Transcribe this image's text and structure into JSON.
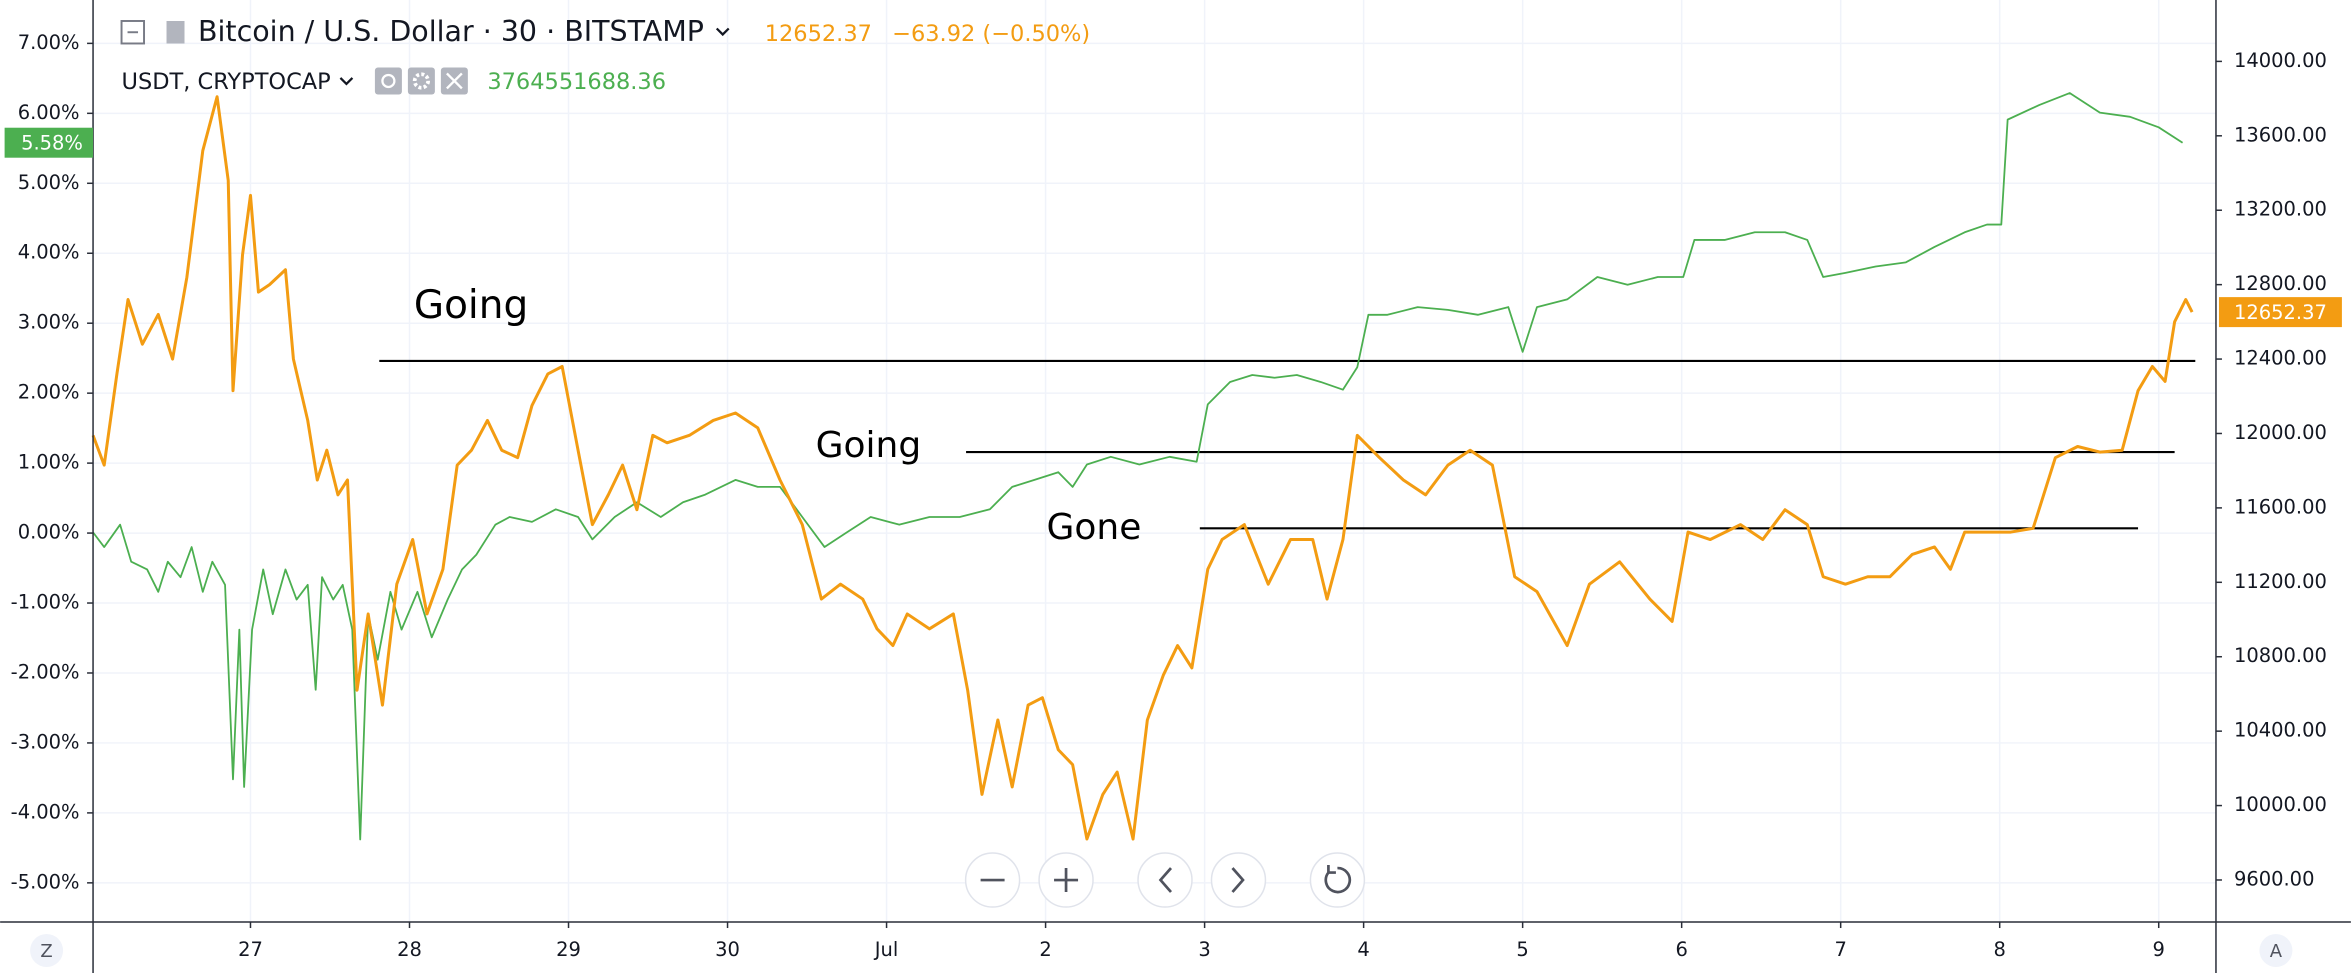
{
  "chart_data": {
    "type": "line",
    "xlim": [
      26.01,
      39.36
    ],
    "xticks": [
      {
        "value": 27,
        "label": "27"
      },
      {
        "value": 28,
        "label": "28"
      },
      {
        "value": 29,
        "label": "29"
      },
      {
        "value": 30,
        "label": "30"
      },
      {
        "value": 31,
        "label": "Jul"
      },
      {
        "value": 32,
        "label": "2"
      },
      {
        "value": 33,
        "label": "3"
      },
      {
        "value": 34,
        "label": "4"
      },
      {
        "value": 35,
        "label": "5"
      },
      {
        "value": 36,
        "label": "6"
      },
      {
        "value": 37,
        "label": "7"
      },
      {
        "value": 38,
        "label": "8"
      },
      {
        "value": 39,
        "label": "9"
      }
    ],
    "ylim": [
      -5.56,
      7.62
    ],
    "yticks": [
      {
        "value": 7,
        "label": "7.00%"
      },
      {
        "value": 6,
        "label": "6.00%"
      },
      {
        "value": 5,
        "label": "5.00%"
      },
      {
        "value": 4,
        "label": "4.00%"
      },
      {
        "value": 3,
        "label": "3.00%"
      },
      {
        "value": 2,
        "label": "2.00%"
      },
      {
        "value": 1,
        "label": "1.00%"
      },
      {
        "value": 0,
        "label": "0.00%"
      },
      {
        "value": -1,
        "label": "-1.00%"
      },
      {
        "value": -2,
        "label": "-2.00%"
      },
      {
        "value": -3,
        "label": "-3.00%"
      },
      {
        "value": -4,
        "label": "-4.00%"
      },
      {
        "value": -5,
        "label": "-5.00%"
      }
    ],
    "y2lim": [
      9374,
      14330
    ],
    "y2ticks": [
      {
        "value": 14000,
        "label": "14000.00"
      },
      {
        "value": 13600,
        "label": "13600.00"
      },
      {
        "value": 13200,
        "label": "13200.00"
      },
      {
        "value": 12800,
        "label": "12800.00"
      },
      {
        "value": 12400,
        "label": "12400.00"
      },
      {
        "value": 12000,
        "label": "12000.00"
      },
      {
        "value": 11600,
        "label": "11600.00"
      },
      {
        "value": 11200,
        "label": "11200.00"
      },
      {
        "value": 10800,
        "label": "10800.00"
      },
      {
        "value": 10400,
        "label": "10400.00"
      },
      {
        "value": 10000,
        "label": "10000.00"
      },
      {
        "value": 9600,
        "label": "9600.00"
      }
    ],
    "grid": true,
    "series": [
      {
        "name": "Bitcoin / U.S. Dollar · 30 · BITSTAMP",
        "color": "#f39c12",
        "axis": "y2",
        "header_value": "12652.37",
        "change": "−63.92 (−0.50%)",
        "last_label": "12652.37",
        "x": [
          26.01,
          26.08,
          26.16,
          26.23,
          26.32,
          26.42,
          26.51,
          26.6,
          26.7,
          26.79,
          26.86,
          26.89,
          26.95,
          27,
          27.05,
          27.12,
          27.22,
          27.27,
          27.36,
          27.42,
          27.48,
          27.55,
          27.61,
          27.67,
          27.74,
          27.83,
          27.92,
          28.02,
          28.11,
          28.21,
          28.3,
          28.39,
          28.49,
          28.58,
          28.68,
          28.77,
          28.87,
          28.96,
          29.06,
          29.15,
          29.25,
          29.34,
          29.43,
          29.53,
          29.62,
          29.76,
          29.91,
          30.05,
          30.19,
          30.33,
          30.47,
          30.59,
          30.71,
          30.85,
          30.94,
          31.04,
          31.13,
          31.27,
          31.42,
          31.51,
          31.6,
          31.7,
          31.79,
          31.89,
          31.98,
          32.08,
          32.17,
          32.26,
          32.36,
          32.45,
          32.55,
          32.64,
          32.74,
          32.83,
          32.92,
          33.02,
          33.11,
          33.25,
          33.4,
          33.54,
          33.68,
          33.77,
          33.87,
          33.96,
          34.1,
          34.25,
          34.39,
          34.53,
          34.67,
          34.81,
          34.95,
          35.09,
          35.28,
          35.42,
          35.61,
          35.8,
          35.94,
          36.04,
          36.18,
          36.37,
          36.51,
          36.65,
          36.79,
          36.89,
          37.03,
          37.17,
          37.31,
          37.45,
          37.59,
          37.69,
          37.78,
          37.92,
          38.07,
          38.21,
          38.35,
          38.49,
          38.63,
          38.77,
          38.87,
          38.96,
          39.04,
          39.1,
          39.17,
          39.21
        ],
        "values": [
          11990,
          11830,
          12320,
          12720,
          12480,
          12640,
          12400,
          12840,
          13520,
          13810,
          13360,
          12230,
          12960,
          13280,
          12760,
          12800,
          12880,
          12400,
          12070,
          11750,
          11910,
          11670,
          11750,
          10620,
          11030,
          10540,
          11190,
          11430,
          11030,
          11270,
          11830,
          11910,
          12070,
          11910,
          11870,
          12150,
          12320,
          12360,
          11910,
          11510,
          11670,
          11830,
          11590,
          11990,
          11950,
          11990,
          12070,
          12110,
          12030,
          11750,
          11510,
          11110,
          11190,
          11110,
          10950,
          10860,
          11030,
          10950,
          11030,
          10620,
          10060,
          10460,
          10100,
          10540,
          10580,
          10300,
          10220,
          9820,
          10060,
          10180,
          9820,
          10460,
          10700,
          10860,
          10740,
          11270,
          11430,
          11510,
          11190,
          11430,
          11430,
          11110,
          11430,
          11990,
          11870,
          11750,
          11670,
          11830,
          11910,
          11830,
          11230,
          11150,
          10860,
          11190,
          11310,
          11110,
          10990,
          11470,
          11430,
          11510,
          11430,
          11590,
          11510,
          11230,
          11190,
          11230,
          11230,
          11350,
          11390,
          11270,
          11470,
          11470,
          11470,
          11490,
          11870,
          11930,
          11900,
          11910,
          12230,
          12360,
          12280,
          12600,
          12720,
          12652.37
        ]
      },
      {
        "name": "USDT, CRYPTOCAP",
        "color": "#4caf50",
        "axis": "y",
        "header_value": "3764551688.36",
        "last_label": "5.58%",
        "x": [
          26.01,
          26.08,
          26.18,
          26.25,
          26.35,
          26.42,
          26.48,
          26.56,
          26.63,
          26.7,
          26.76,
          26.84,
          26.89,
          26.93,
          26.96,
          27.01,
          27.08,
          27.14,
          27.22,
          27.29,
          27.36,
          27.41,
          27.45,
          27.52,
          27.58,
          27.64,
          27.69,
          27.74,
          27.8,
          27.88,
          27.95,
          28.05,
          28.14,
          28.24,
          28.33,
          28.42,
          28.54,
          28.63,
          28.77,
          28.92,
          29.06,
          29.15,
          29.29,
          29.43,
          29.58,
          29.72,
          29.86,
          30.05,
          30.19,
          30.33,
          30.47,
          30.61,
          30.75,
          30.9,
          31.08,
          31.27,
          31.46,
          31.65,
          31.79,
          31.93,
          32.08,
          32.17,
          32.26,
          32.41,
          32.59,
          32.78,
          32.95,
          33.02,
          33.16,
          33.3,
          33.44,
          33.58,
          33.73,
          33.87,
          33.96,
          34.03,
          34.15,
          34.34,
          34.53,
          34.72,
          34.91,
          35,
          35.09,
          35.28,
          35.47,
          35.66,
          35.85,
          36.01,
          36.08,
          36.27,
          36.46,
          36.65,
          36.79,
          36.89,
          37.03,
          37.22,
          37.41,
          37.59,
          37.78,
          37.92,
          38.01,
          38.05,
          38.25,
          38.44,
          38.63,
          38.82,
          39,
          39.15
        ],
        "values": [
          0.01,
          -0.2,
          0.12,
          -0.41,
          -0.52,
          -0.84,
          -0.41,
          -0.63,
          -0.2,
          -0.84,
          -0.41,
          -0.74,
          -3.52,
          -1.38,
          -3.63,
          -1.38,
          -0.52,
          -1.16,
          -0.52,
          -0.95,
          -0.74,
          -2.24,
          -0.63,
          -0.95,
          -0.74,
          -1.38,
          -4.38,
          -1.16,
          -1.81,
          -0.84,
          -1.38,
          -0.84,
          -1.49,
          -0.95,
          -0.52,
          -0.31,
          0.12,
          0.23,
          0.16,
          0.34,
          0.23,
          -0.09,
          0.23,
          0.44,
          0.23,
          0.44,
          0.55,
          0.76,
          0.66,
          0.66,
          0.23,
          -0.2,
          0.01,
          0.23,
          0.12,
          0.23,
          0.23,
          0.34,
          0.66,
          0.76,
          0.87,
          0.66,
          0.98,
          1.09,
          0.98,
          1.09,
          1.02,
          1.84,
          2.16,
          2.26,
          2.22,
          2.26,
          2.16,
          2.05,
          2.37,
          3.12,
          3.12,
          3.23,
          3.19,
          3.12,
          3.23,
          2.59,
          3.23,
          3.34,
          3.66,
          3.55,
          3.66,
          3.66,
          4.19,
          4.19,
          4.3,
          4.3,
          4.19,
          3.66,
          3.72,
          3.81,
          3.87,
          4.09,
          4.3,
          4.41,
          4.41,
          5.91,
          6.12,
          6.29,
          6.01,
          5.95,
          5.8,
          5.58
        ]
      }
    ],
    "annotations": [
      {
        "text": "Going",
        "axis": "y2",
        "y": 12390,
        "x": [
          27.81,
          39.23
        ]
      },
      {
        "text": "Going",
        "axis": "y2",
        "y": 11900,
        "x": [
          31.5,
          39.1
        ]
      },
      {
        "text": "Gone",
        "axis": "y2",
        "y": 11490,
        "x": [
          32.97,
          38.87
        ]
      }
    ],
    "controls": {
      "left": "Z",
      "right": "A"
    }
  }
}
